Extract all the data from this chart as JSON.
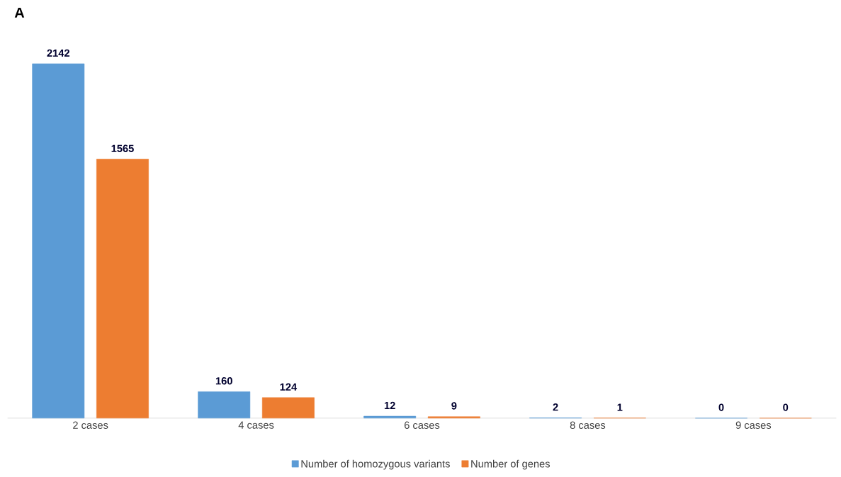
{
  "chart_data": {
    "type": "bar",
    "title": "A",
    "categories": [
      "2 cases",
      "4 cases",
      "6 cases",
      "8 cases",
      "9 cases"
    ],
    "series": [
      {
        "name": "Number of homozygous variants",
        "color": "#5b9bd5",
        "values": [
          2142,
          160,
          12,
          2,
          0
        ]
      },
      {
        "name": "Number of genes",
        "color": "#ed7d31",
        "values": [
          1565,
          124,
          9,
          1,
          0
        ]
      }
    ],
    "data_labels": true,
    "legend": "bottom"
  }
}
